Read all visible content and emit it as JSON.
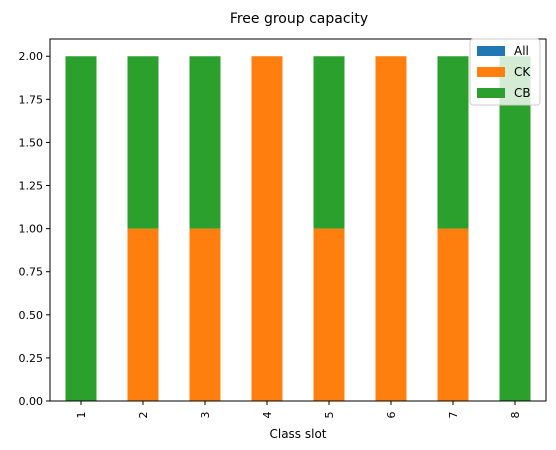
{
  "chart_data": {
    "type": "bar",
    "stacked": true,
    "title": "Free group capacity",
    "xlabel": "Class slot",
    "ylabel": "",
    "categories": [
      "1",
      "2",
      "3",
      "4",
      "5",
      "6",
      "7",
      "8"
    ],
    "series": [
      {
        "name": "All",
        "color": "#1f77b4",
        "values": [
          0,
          0,
          0,
          0,
          0,
          0,
          0,
          0
        ]
      },
      {
        "name": "CK",
        "color": "#ff7f0e",
        "values": [
          0,
          1,
          1,
          2,
          1,
          2,
          1,
          0
        ]
      },
      {
        "name": "CB",
        "color": "#2ca02c",
        "values": [
          2,
          1,
          1,
          0,
          1,
          0,
          1,
          2
        ]
      }
    ],
    "ylim": [
      0,
      2.1
    ],
    "yticks": [
      "0.00",
      "0.25",
      "0.50",
      "0.75",
      "1.00",
      "1.25",
      "1.50",
      "1.75",
      "2.00"
    ],
    "grid": false,
    "legend_position": "top-right"
  }
}
